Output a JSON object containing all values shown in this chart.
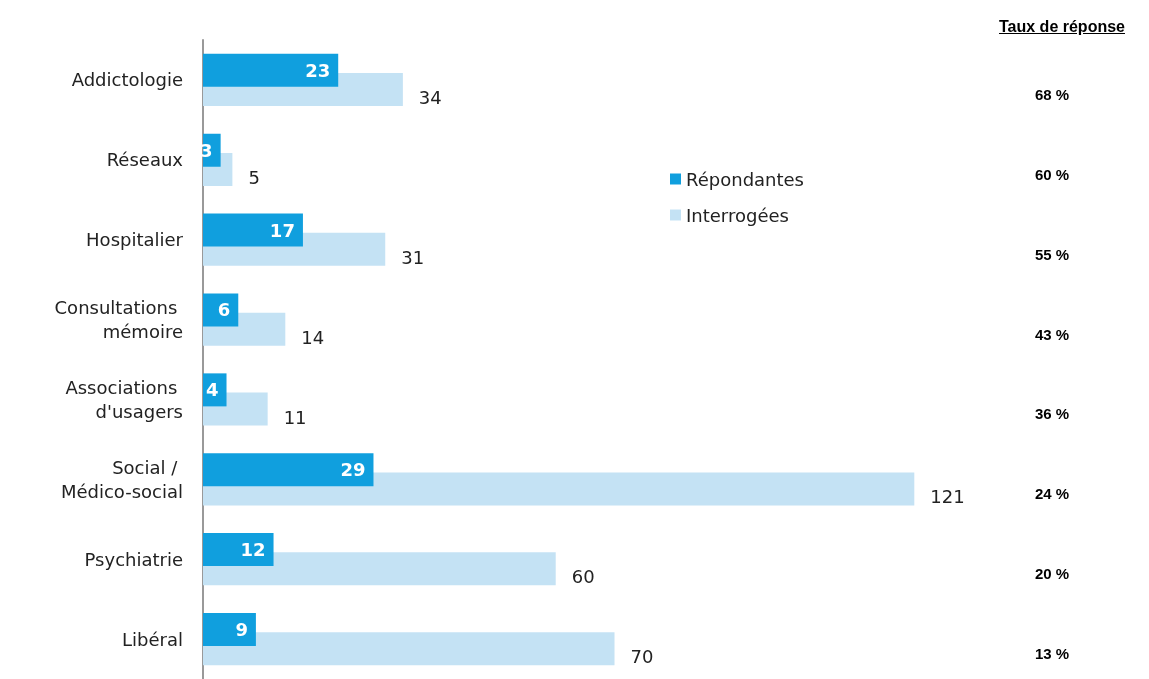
{
  "chart_data": {
    "type": "bar",
    "orientation": "horizontal",
    "categories": [
      "Addictologie",
      "Réseaux",
      "Hospitalier",
      "Consultations mémoire",
      "Associations d'usagers",
      "Social / Médico-social",
      "Psychiatrie",
      "Libéral"
    ],
    "series": [
      {
        "name": "Répondantes",
        "color": "#109fde",
        "values": [
          23,
          3,
          17,
          6,
          4,
          29,
          12,
          9
        ]
      },
      {
        "name": "Interrogées",
        "color": "#c4e2f4",
        "values": [
          34,
          5,
          31,
          14,
          11,
          121,
          60,
          70
        ]
      }
    ],
    "data_labels": true,
    "legend": "right",
    "grid": false,
    "annotations": [
      "Taux de réponse",
      "68 %",
      "60 %",
      "55 %",
      "43 %",
      "36 %",
      "24 %",
      "20 %",
      "13 %"
    ]
  }
}
